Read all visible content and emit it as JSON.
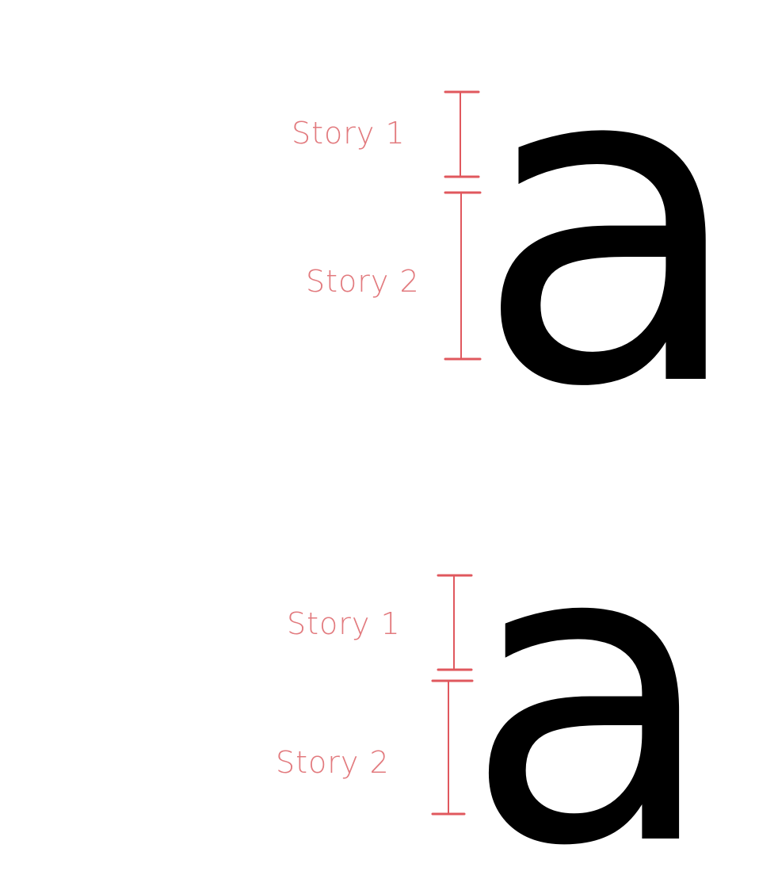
{
  "figures": [
    {
      "name": "double-story-a",
      "glyph": "a",
      "annotations": [
        {
          "label": "Story 1"
        },
        {
          "label": "Story 2"
        }
      ]
    },
    {
      "name": "double-story-a-round",
      "glyph": "a",
      "annotations": [
        {
          "label": "Story 1"
        },
        {
          "label": "Story 2"
        }
      ]
    }
  ],
  "colors": {
    "annotation": "#e27a7e",
    "bracket": "#e0585e",
    "glyph": "#000000",
    "background": "#ffffff"
  }
}
